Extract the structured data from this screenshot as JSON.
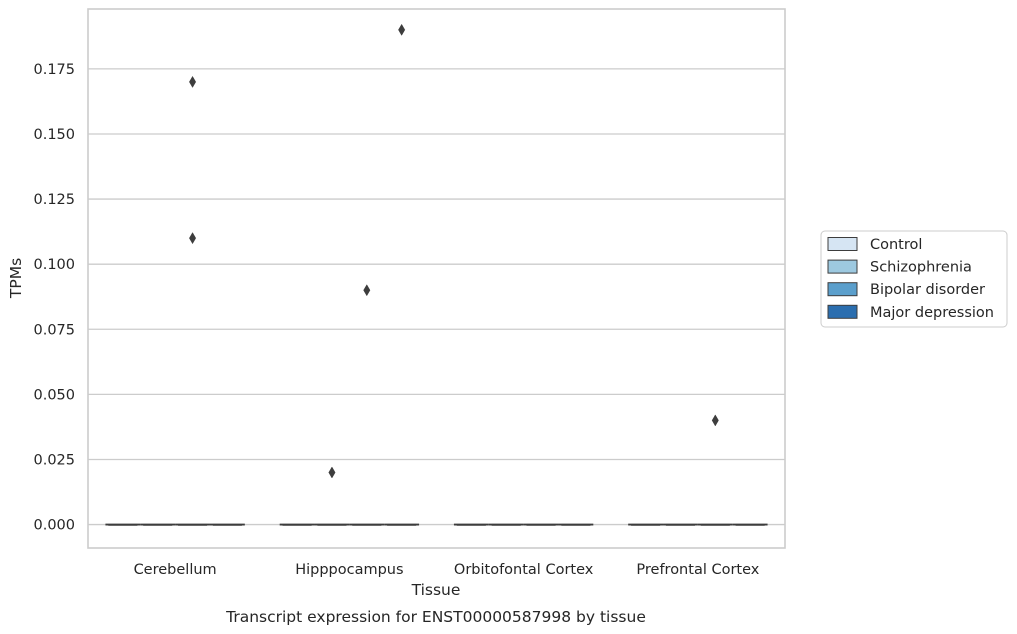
{
  "chart_data": {
    "type": "box",
    "xlabel": "Tissue",
    "ylabel": "TPMs",
    "caption": "Transcript expression for ENST00000587998 by tissue",
    "categories": [
      "Cerebellum",
      "Hipppocampus",
      "Orbitofontal Cortex",
      "Prefrontal Cortex"
    ],
    "ylim": [
      -0.009,
      0.198
    ],
    "yticks": [
      0.0,
      0.025,
      0.05,
      0.075,
      0.1,
      0.125,
      0.15,
      0.175
    ],
    "ytick_labels": [
      "0.000",
      "0.025",
      "0.050",
      "0.075",
      "0.100",
      "0.125",
      "0.150",
      "0.175"
    ],
    "grid": true,
    "legend_position": "right",
    "series": [
      {
        "name": "Control",
        "color": "#d6e5f3"
      },
      {
        "name": "Schizophrenia",
        "color": "#9dc9e0"
      },
      {
        "name": "Bipolar disorder",
        "color": "#5b9fcc"
      },
      {
        "name": "Major depression",
        "color": "#2b6eaf"
      }
    ],
    "boxes": [
      {
        "category": "Cerebellum",
        "series": "Control",
        "q1": 0,
        "median": 0,
        "q3": 0,
        "outliers": []
      },
      {
        "category": "Cerebellum",
        "series": "Schizophrenia",
        "q1": 0,
        "median": 0,
        "q3": 0,
        "outliers": []
      },
      {
        "category": "Cerebellum",
        "series": "Bipolar disorder",
        "q1": 0,
        "median": 0,
        "q3": 0,
        "outliers": [
          0.17,
          0.11
        ]
      },
      {
        "category": "Cerebellum",
        "series": "Major depression",
        "q1": 0,
        "median": 0,
        "q3": 0,
        "outliers": []
      },
      {
        "category": "Hipppocampus",
        "series": "Control",
        "q1": 0,
        "median": 0,
        "q3": 0,
        "outliers": []
      },
      {
        "category": "Hipppocampus",
        "series": "Schizophrenia",
        "q1": 0,
        "median": 0,
        "q3": 0,
        "outliers": [
          0.02
        ]
      },
      {
        "category": "Hipppocampus",
        "series": "Bipolar disorder",
        "q1": 0,
        "median": 0,
        "q3": 0,
        "outliers": [
          0.09
        ]
      },
      {
        "category": "Hipppocampus",
        "series": "Major depression",
        "q1": 0,
        "median": 0,
        "q3": 0,
        "outliers": [
          0.19
        ]
      },
      {
        "category": "Orbitofontal Cortex",
        "series": "Control",
        "q1": 0,
        "median": 0,
        "q3": 0,
        "outliers": []
      },
      {
        "category": "Orbitofontal Cortex",
        "series": "Schizophrenia",
        "q1": 0,
        "median": 0,
        "q3": 0,
        "outliers": []
      },
      {
        "category": "Orbitofontal Cortex",
        "series": "Bipolar disorder",
        "q1": 0,
        "median": 0,
        "q3": 0,
        "outliers": []
      },
      {
        "category": "Orbitofontal Cortex",
        "series": "Major depression",
        "q1": 0,
        "median": 0,
        "q3": 0,
        "outliers": []
      },
      {
        "category": "Prefrontal Cortex",
        "series": "Control",
        "q1": 0,
        "median": 0,
        "q3": 0,
        "outliers": []
      },
      {
        "category": "Prefrontal Cortex",
        "series": "Schizophrenia",
        "q1": 0,
        "median": 0,
        "q3": 0,
        "outliers": []
      },
      {
        "category": "Prefrontal Cortex",
        "series": "Bipolar disorder",
        "q1": 0,
        "median": 0,
        "q3": 0,
        "outliers": [
          0.04
        ]
      },
      {
        "category": "Prefrontal Cortex",
        "series": "Major depression",
        "q1": 0,
        "median": 0,
        "q3": 0,
        "outliers": []
      }
    ]
  }
}
